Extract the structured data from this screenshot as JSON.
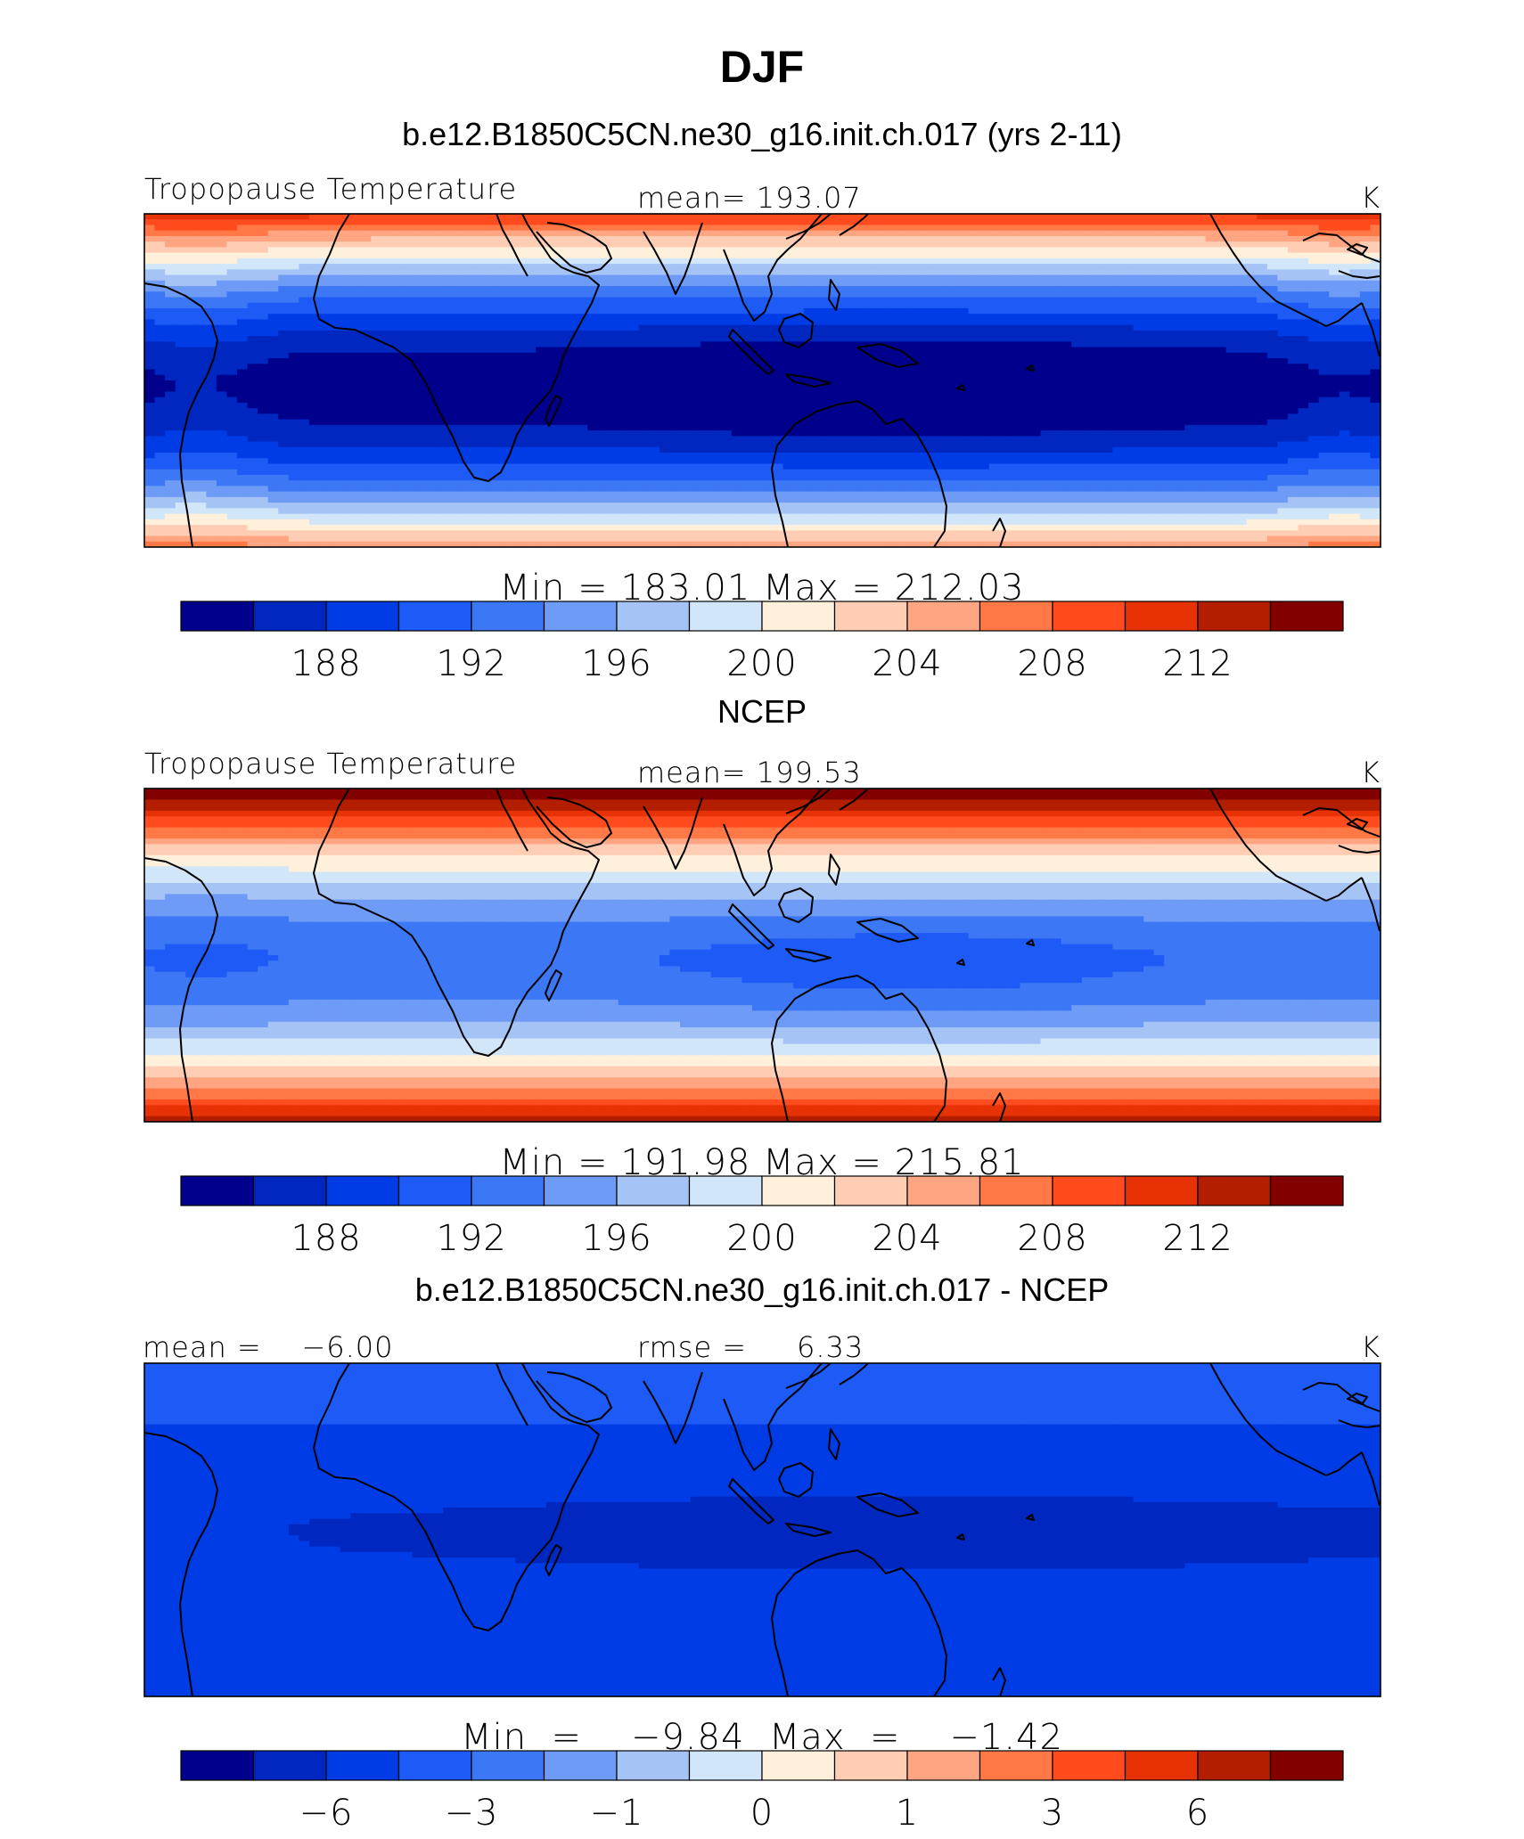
{
  "figure": {
    "title": "DJF",
    "palette": [
      "#00008c",
      "#0028c0",
      "#003ce6",
      "#1e5af5",
      "#3c78f5",
      "#6e9bf5",
      "#a5c3f5",
      "#d2e6fa",
      "#fff0dc",
      "#ffcdb4",
      "#ffa582",
      "#ff7846",
      "#ff4b1e",
      "#e63205",
      "#b41e00",
      "#820000"
    ]
  },
  "panels": [
    {
      "id": "model",
      "heading": "b.e12.B1850C5CN.ne30_g16.init.ch.017 (yrs 2-11)",
      "left_label": "Tropopause  Temperature",
      "center_label": "mean=  193.07",
      "units": "K",
      "minmax": "Min  =  183.01  Max  =  212.03",
      "colorbar_ticks": [
        "188",
        "192",
        "196",
        "200",
        "204",
        "208",
        "212"
      ]
    },
    {
      "id": "obs",
      "heading": "NCEP",
      "left_label": "Tropopause  Temperature",
      "center_label": "mean=  199.53",
      "units": "K",
      "minmax": "Min  =  191.98  Max  =  215.81",
      "colorbar_ticks": [
        "188",
        "192",
        "196",
        "200",
        "204",
        "208",
        "212"
      ]
    },
    {
      "id": "diff",
      "heading": "b.e12.B1850C5CN.ne30_g16.init.ch.017 - NCEP",
      "left_label": "mean =    −6.00",
      "center_label": "rmse =     6.33",
      "units": "K",
      "minmax": "Min  =    −9.84  Max  =    −1.42",
      "colorbar_ticks": [
        "−6",
        "−3",
        "−1",
        "0",
        "1",
        "3",
        "6"
      ]
    }
  ],
  "chart_data": [
    {
      "type": "heatmap",
      "title": "Tropopause  Temperature",
      "units": "K",
      "stat": {
        "mean": 193.07,
        "min": 183.01,
        "max": 212.03
      },
      "levels": [
        186,
        188,
        190,
        192,
        194,
        196,
        198,
        200,
        202,
        204,
        206,
        208,
        210,
        212,
        214
      ],
      "colorbar_labels": [
        188,
        192,
        196,
        200,
        204,
        208,
        212
      ],
      "projection": "cylindrical equidistant, 45S-45N, 30W-330E"
    },
    {
      "type": "heatmap",
      "title": "Tropopause  Temperature",
      "units": "K",
      "stat": {
        "mean": 199.53,
        "min": 191.98,
        "max": 215.81
      },
      "levels": [
        186,
        188,
        190,
        192,
        194,
        196,
        198,
        200,
        202,
        204,
        206,
        208,
        210,
        212,
        214
      ],
      "colorbar_labels": [
        188,
        192,
        196,
        200,
        204,
        208,
        212
      ],
      "projection": "cylindrical equidistant, 45S-45N, 30W-330E"
    },
    {
      "type": "heatmap",
      "title": "b.e12.B1850C5CN.ne30_g16.init.ch.017 - NCEP",
      "units": "K",
      "stat": {
        "mean": -6.0,
        "rmse": 6.33,
        "min": -9.84,
        "max": -1.42
      },
      "levels": [
        -8,
        -6,
        -4,
        -3,
        -2,
        -1,
        -0.5,
        0,
        0.5,
        1,
        2,
        3,
        4,
        6,
        8
      ],
      "colorbar_labels": [
        -6,
        -3,
        -1,
        0,
        1,
        3,
        6
      ],
      "projection": "cylindrical equidistant, 45S-45N, 30W-330E"
    }
  ]
}
